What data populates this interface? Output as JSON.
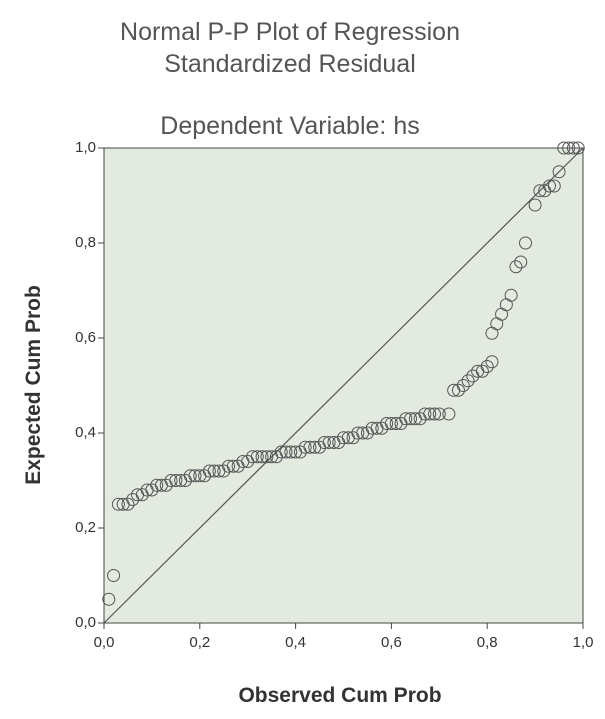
{
  "chart_data": {
    "type": "scatter",
    "title": [
      "Normal P-P Plot of Regression",
      "Standardized Residual"
    ],
    "subtitle": "Dependent Variable: hs",
    "xlabel": "Observed Cum Prob",
    "ylabel": "Expected Cum Prob",
    "xlim": [
      0,
      1
    ],
    "ylim": [
      0,
      1
    ],
    "xticks": [
      {
        "value": 0,
        "label": "0,0"
      },
      {
        "value": 0.2,
        "label": "0,2"
      },
      {
        "value": 0.4,
        "label": "0,4"
      },
      {
        "value": 0.6,
        "label": "0,6"
      },
      {
        "value": 0.8,
        "label": "0,8"
      },
      {
        "value": 1,
        "label": "1,0"
      }
    ],
    "yticks": [
      {
        "value": 0,
        "label": "0,0"
      },
      {
        "value": 0.2,
        "label": "0,2"
      },
      {
        "value": 0.4,
        "label": "0,4"
      },
      {
        "value": 0.6,
        "label": "0,6"
      },
      {
        "value": 0.8,
        "label": "0,8"
      },
      {
        "value": 1,
        "label": "1,0"
      }
    ],
    "color": "#555555",
    "x": [
      0.01,
      0.02,
      0.03,
      0.04,
      0.05,
      0.06,
      0.07,
      0.08,
      0.09,
      0.1,
      0.11,
      0.12,
      0.13,
      0.14,
      0.15,
      0.16,
      0.17,
      0.18,
      0.19,
      0.2,
      0.21,
      0.22,
      0.23,
      0.24,
      0.25,
      0.26,
      0.27,
      0.28,
      0.29,
      0.3,
      0.31,
      0.32,
      0.33,
      0.34,
      0.35,
      0.36,
      0.37,
      0.38,
      0.39,
      0.4,
      0.41,
      0.42,
      0.43,
      0.44,
      0.45,
      0.46,
      0.47,
      0.48,
      0.49,
      0.5,
      0.51,
      0.52,
      0.53,
      0.54,
      0.55,
      0.56,
      0.57,
      0.58,
      0.59,
      0.6,
      0.61,
      0.62,
      0.63,
      0.64,
      0.65,
      0.66,
      0.67,
      0.68,
      0.69,
      0.7,
      0.72,
      0.73,
      0.74,
      0.75,
      0.76,
      0.77,
      0.78,
      0.79,
      0.8,
      0.81,
      0.81,
      0.82,
      0.83,
      0.84,
      0.85,
      0.86,
      0.87,
      0.88,
      0.9,
      0.91,
      0.92,
      0.93,
      0.94,
      0.95,
      0.96,
      0.97,
      0.98,
      0.99
    ],
    "y": [
      0.05,
      0.1,
      0.25,
      0.25,
      0.25,
      0.26,
      0.27,
      0.27,
      0.28,
      0.28,
      0.29,
      0.29,
      0.29,
      0.3,
      0.3,
      0.3,
      0.3,
      0.31,
      0.31,
      0.31,
      0.31,
      0.32,
      0.32,
      0.32,
      0.32,
      0.33,
      0.33,
      0.33,
      0.34,
      0.34,
      0.35,
      0.35,
      0.35,
      0.35,
      0.35,
      0.35,
      0.36,
      0.36,
      0.36,
      0.36,
      0.36,
      0.37,
      0.37,
      0.37,
      0.37,
      0.38,
      0.38,
      0.38,
      0.38,
      0.39,
      0.39,
      0.39,
      0.4,
      0.4,
      0.4,
      0.41,
      0.41,
      0.41,
      0.42,
      0.42,
      0.42,
      0.42,
      0.43,
      0.43,
      0.43,
      0.43,
      0.44,
      0.44,
      0.44,
      0.44,
      0.44,
      0.49,
      0.49,
      0.5,
      0.51,
      0.52,
      0.53,
      0.53,
      0.54,
      0.55,
      0.61,
      0.63,
      0.65,
      0.67,
      0.69,
      0.75,
      0.76,
      0.8,
      0.88,
      0.91,
      0.91,
      0.92,
      0.92,
      0.95,
      1.0,
      1.0,
      1.0,
      1.0
    ]
  }
}
